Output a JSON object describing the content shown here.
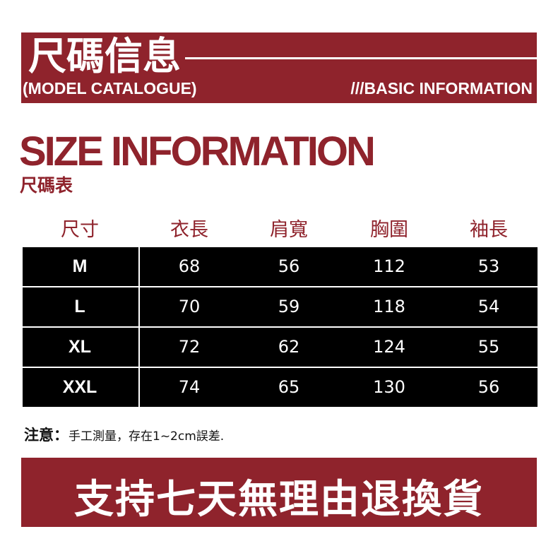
{
  "header": {
    "title_cn": "尺碼信息",
    "subtitle_left": "(MODEL CATALOGUE)",
    "subtitle_right": "///BASIC INFORMATION"
  },
  "section": {
    "title": "SIZE INFORMATION",
    "subtitle": "尺碼表"
  },
  "table": {
    "columns": [
      "尺寸",
      "衣長",
      "肩寬",
      "胸圍",
      "袖長"
    ],
    "rows": [
      [
        "M",
        "68",
        "56",
        "112",
        "53"
      ],
      [
        "L",
        "70",
        "59",
        "118",
        "54"
      ],
      [
        "XL",
        "72",
        "62",
        "124",
        "55"
      ],
      [
        "XXL",
        "74",
        "65",
        "130",
        "56"
      ]
    ]
  },
  "note": {
    "label": "注意：",
    "text": "手工測量，存在1~2cm誤差."
  },
  "footer": {
    "text": "支持七天無理由退換貨"
  },
  "colors": {
    "brand": "#8f232c",
    "table_bg": "#000000"
  }
}
